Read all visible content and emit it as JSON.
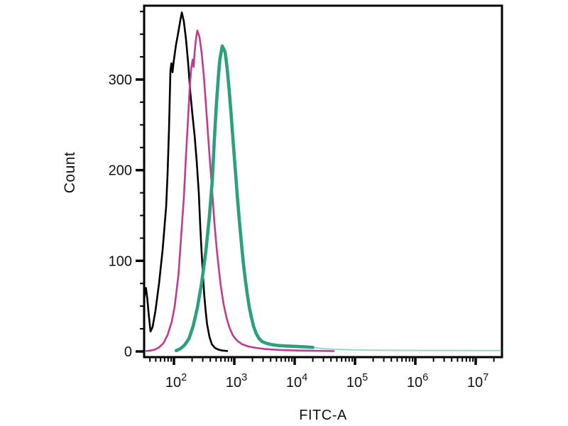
{
  "figure": {
    "background_color": "#ffffff",
    "frame_color": "#000000",
    "text_color": "#111111"
  },
  "chart_data": {
    "type": "line",
    "subtype": "flow-cytometry-histogram-overlay",
    "title": "",
    "xlabel": "FITC-A",
    "ylabel": "Count",
    "x_scale": "log10",
    "x_range": [
      32,
      27000000
    ],
    "y_range": [
      0,
      381
    ],
    "grid": false,
    "legend": "none",
    "y_major_ticks": [
      {
        "value": 0,
        "label": "0"
      },
      {
        "value": 100,
        "label": "100"
      },
      {
        "value": 200,
        "label": "200"
      },
      {
        "value": 300,
        "label": "300"
      }
    ],
    "y_minor_step": 25,
    "x_major_ticks": [
      {
        "value": 100,
        "base": "10",
        "exp": "2"
      },
      {
        "value": 1000,
        "base": "10",
        "exp": "3"
      },
      {
        "value": 10000,
        "base": "10",
        "exp": "4"
      },
      {
        "value": 100000,
        "base": "10",
        "exp": "5"
      },
      {
        "value": 1000000,
        "base": "10",
        "exp": "6"
      },
      {
        "value": 10000000,
        "base": "10",
        "exp": "7"
      }
    ],
    "series": [
      {
        "name": "black-curve",
        "color": "#000000",
        "stroke_width": 2.6,
        "peak": {
          "x": 135,
          "count": 374
        },
        "points": [
          [
            32,
            58
          ],
          [
            33.8,
            68
          ],
          [
            34.4,
            70
          ],
          [
            36.2,
            58
          ],
          [
            38.3,
            40
          ],
          [
            40.9,
            22
          ],
          [
            44.3,
            27
          ],
          [
            49.4,
            45
          ],
          [
            56.6,
            75
          ],
          [
            64.9,
            112
          ],
          [
            74.3,
            160
          ],
          [
            78.3,
            195
          ],
          [
            82.8,
            245
          ],
          [
            87.4,
            310
          ],
          [
            90.8,
            318
          ],
          [
            94.7,
            308
          ],
          [
            100,
            322
          ],
          [
            108,
            338
          ],
          [
            118,
            352
          ],
          [
            128,
            366
          ],
          [
            135,
            374
          ],
          [
            146,
            364
          ],
          [
            158,
            345
          ],
          [
            172,
            318
          ],
          [
            187,
            285
          ],
          [
            202,
            262
          ],
          [
            220,
            238
          ],
          [
            238,
            210
          ],
          [
            258,
            175
          ],
          [
            272,
            140
          ],
          [
            287,
            110
          ],
          [
            302,
            85
          ],
          [
            318,
            62
          ],
          [
            336,
            44
          ],
          [
            354,
            30
          ],
          [
            388,
            16
          ],
          [
            424,
            8
          ],
          [
            476,
            4
          ],
          [
            546,
            2
          ],
          [
            631,
            1
          ],
          [
            762,
            0.5
          ]
        ]
      },
      {
        "name": "magenta-curve",
        "color": "#c03a90",
        "stroke_width": 2.6,
        "peak": {
          "x": 244,
          "count": 354
        },
        "points": [
          [
            34.8,
            0.5
          ],
          [
            40.9,
            1
          ],
          [
            48.1,
            2
          ],
          [
            56.6,
            4.5
          ],
          [
            66.6,
            9
          ],
          [
            78.3,
            18
          ],
          [
            92.1,
            33
          ],
          [
            103,
            50
          ],
          [
            119,
            85
          ],
          [
            131,
            125
          ],
          [
            146,
            170
          ],
          [
            158,
            215
          ],
          [
            173,
            262
          ],
          [
            182,
            290
          ],
          [
            193,
            312
          ],
          [
            204,
            322
          ],
          [
            212,
            314
          ],
          [
            220,
            330
          ],
          [
            232,
            345
          ],
          [
            244,
            354
          ],
          [
            265,
            347
          ],
          [
            287,
            330
          ],
          [
            312,
            305
          ],
          [
            339,
            272
          ],
          [
            368,
            238
          ],
          [
            400,
            205
          ],
          [
            435,
            172
          ],
          [
            468,
            142
          ],
          [
            508,
            115
          ],
          [
            552,
            92
          ],
          [
            598,
            72
          ],
          [
            665,
            52
          ],
          [
            740,
            38
          ],
          [
            823,
            27
          ],
          [
            941,
            18
          ],
          [
            1110,
            12
          ],
          [
            1340,
            8
          ],
          [
            1720,
            5.5
          ],
          [
            2250,
            4
          ],
          [
            3120,
            2.8
          ],
          [
            4560,
            2
          ],
          [
            6660,
            1.4
          ],
          [
            11400,
            1
          ],
          [
            22400,
            0.7
          ],
          [
            44400,
            0.4
          ]
        ]
      },
      {
        "name": "teal-curve",
        "color": "#2aa07c",
        "stroke_width": 4.6,
        "peak": {
          "x": 631,
          "count": 337
        },
        "light_tail_from_x": 20000,
        "light_tail_opacity": 0.45,
        "points": [
          [
            109,
            1
          ],
          [
            128,
            3
          ],
          [
            150,
            7
          ],
          [
            177,
            14
          ],
          [
            208,
            28
          ],
          [
            244,
            48
          ],
          [
            287,
            75
          ],
          [
            337,
            110
          ],
          [
            388,
            150
          ],
          [
            433,
            190
          ],
          [
            468,
            235
          ],
          [
            508,
            275
          ],
          [
            547,
            305
          ],
          [
            576,
            322
          ],
          [
            631,
            337
          ],
          [
            706,
            330
          ],
          [
            762,
            312
          ],
          [
            823,
            288
          ],
          [
            889,
            260
          ],
          [
            961,
            230
          ],
          [
            1040,
            200
          ],
          [
            1120,
            172
          ],
          [
            1210,
            145
          ],
          [
            1310,
            120
          ],
          [
            1410,
            98
          ],
          [
            1530,
            78
          ],
          [
            1650,
            62
          ],
          [
            1780,
            48
          ],
          [
            1930,
            37
          ],
          [
            2080,
            28
          ],
          [
            2300,
            20
          ],
          [
            2550,
            14.5
          ],
          [
            2880,
            11
          ],
          [
            3390,
            9
          ],
          [
            4210,
            7.5
          ],
          [
            5370,
            6.5
          ],
          [
            7230,
            6
          ],
          [
            10600,
            5.5
          ],
          [
            15900,
            5
          ],
          [
            20000,
            4.5
          ],
          [
            30000,
            3
          ],
          [
            46000,
            2.3
          ],
          [
            90000,
            1.8
          ],
          [
            172000,
            1.5
          ],
          [
            500000,
            1.2
          ],
          [
            1500000,
            1.1
          ],
          [
            10000000,
            1
          ],
          [
            27200000,
            1
          ]
        ]
      }
    ]
  }
}
